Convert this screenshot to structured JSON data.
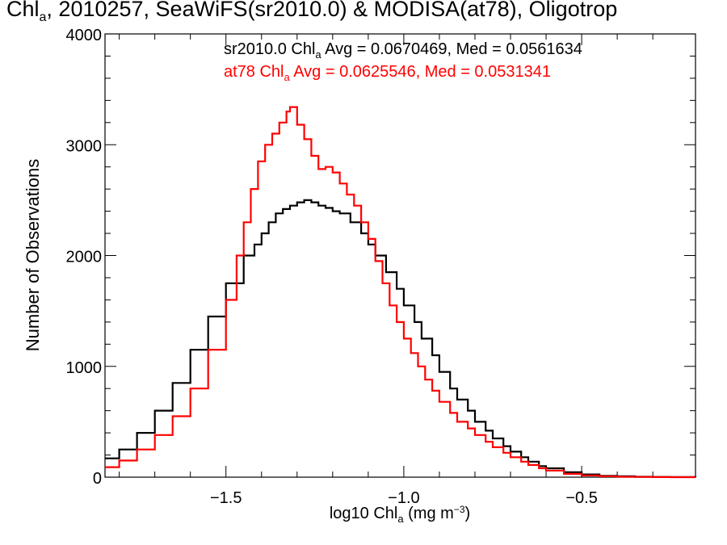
{
  "figure": {
    "title_prefix": "Chl",
    "title_sub": "a",
    "title_rest": ", 2010257, SeaWiFS(sr2010.0) & MODISA(at78), Oligotrop"
  },
  "legend": [
    {
      "prefix": "sr2010.0 Chl",
      "sub": "a",
      "rest": " Avg = 0.0670469, Med = 0.0561634",
      "color": "#000000"
    },
    {
      "prefix": "at78 Chl",
      "sub": "a",
      "rest": " Avg = 0.0625546, Med = 0.0531341",
      "color": "#ff0000"
    }
  ],
  "axes": {
    "ylabel": "Number of Observations",
    "xlabel_prefix": "log10 Chl",
    "xlabel_sub": "a",
    "xlabel_mid": " (mg m",
    "xlabel_sup": "−3",
    "xlabel_end": ")"
  },
  "chart_data": {
    "type": "line",
    "step": true,
    "xlim": [
      -1.84,
      -0.18
    ],
    "ylim": [
      0,
      4000
    ],
    "xticks": [
      -1.5,
      -1.0,
      -0.5
    ],
    "xtick_labels": [
      "−1.5",
      "−1.0",
      "−0.5"
    ],
    "yticks": [
      0,
      1000,
      2000,
      3000,
      4000
    ],
    "ytick_labels": [
      "0",
      "1000",
      "2000",
      "3000",
      "4000"
    ],
    "grid": false,
    "series": [
      {
        "name": "sr2010.0",
        "color": "#000000",
        "x": [
          -1.84,
          -1.8,
          -1.75,
          -1.7,
          -1.65,
          -1.6,
          -1.55,
          -1.5,
          -1.45,
          -1.42,
          -1.4,
          -1.38,
          -1.36,
          -1.34,
          -1.32,
          -1.3,
          -1.28,
          -1.26,
          -1.24,
          -1.22,
          -1.2,
          -1.18,
          -1.15,
          -1.12,
          -1.1,
          -1.08,
          -1.05,
          -1.02,
          -1.0,
          -0.97,
          -0.95,
          -0.92,
          -0.9,
          -0.87,
          -0.85,
          -0.82,
          -0.8,
          -0.77,
          -0.75,
          -0.72,
          -0.7,
          -0.67,
          -0.65,
          -0.62,
          -0.6,
          -0.55,
          -0.5,
          -0.45,
          -0.4,
          -0.35,
          -0.3,
          -0.25,
          -0.18
        ],
        "values": [
          170,
          250,
          400,
          600,
          850,
          1150,
          1450,
          1750,
          2000,
          2100,
          2200,
          2300,
          2380,
          2420,
          2450,
          2480,
          2500,
          2480,
          2450,
          2430,
          2400,
          2380,
          2300,
          2200,
          2100,
          2000,
          1850,
          1700,
          1550,
          1400,
          1250,
          1100,
          950,
          800,
          700,
          600,
          500,
          420,
          350,
          280,
          230,
          180,
          140,
          100,
          80,
          45,
          25,
          12,
          8,
          4,
          2,
          1,
          0
        ]
      },
      {
        "name": "at78",
        "color": "#ff0000",
        "x": [
          -1.84,
          -1.8,
          -1.75,
          -1.7,
          -1.65,
          -1.6,
          -1.55,
          -1.5,
          -1.47,
          -1.45,
          -1.43,
          -1.41,
          -1.39,
          -1.37,
          -1.35,
          -1.33,
          -1.32,
          -1.3,
          -1.28,
          -1.26,
          -1.24,
          -1.22,
          -1.2,
          -1.18,
          -1.16,
          -1.14,
          -1.12,
          -1.1,
          -1.08,
          -1.06,
          -1.04,
          -1.02,
          -1.0,
          -0.98,
          -0.96,
          -0.94,
          -0.92,
          -0.9,
          -0.87,
          -0.85,
          -0.82,
          -0.8,
          -0.77,
          -0.75,
          -0.72,
          -0.7,
          -0.67,
          -0.65,
          -0.62,
          -0.6,
          -0.55,
          -0.5,
          -0.45,
          -0.4,
          -0.35,
          -0.3,
          -0.25,
          -0.18
        ],
        "values": [
          90,
          150,
          250,
          380,
          550,
          800,
          1150,
          1600,
          2000,
          2300,
          2600,
          2850,
          3000,
          3100,
          3200,
          3300,
          3340,
          3180,
          3050,
          2900,
          2780,
          2800,
          2750,
          2650,
          2550,
          2450,
          2300,
          2150,
          1950,
          1750,
          1550,
          1400,
          1250,
          1120,
          1000,
          880,
          780,
          680,
          580,
          500,
          440,
          380,
          320,
          270,
          220,
          180,
          140,
          110,
          80,
          60,
          30,
          15,
          8,
          4,
          2,
          1,
          0,
          0
        ]
      }
    ]
  }
}
